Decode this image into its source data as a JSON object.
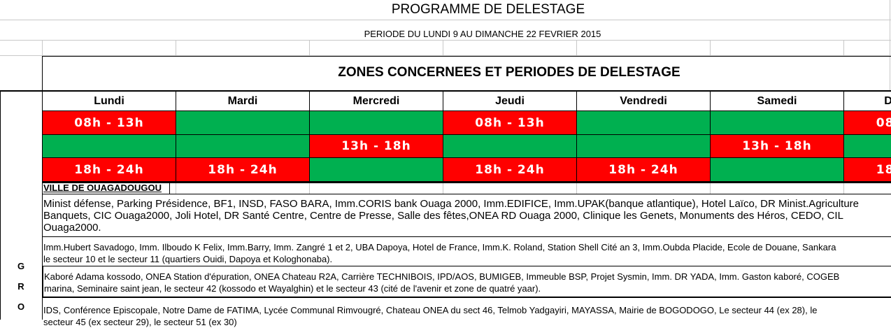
{
  "title": "PROGRAMME DE DELESTAGE",
  "period": "PERIODE DU LUNDI 9 AU DIMANCHE 22 FEVRIER 2015",
  "section_title": "ZONES CONCERNEES ET PERIODES DE DELESTAGE",
  "days": [
    "Lundi",
    "Mardi",
    "Mercredi",
    "Jeudi",
    "Vendredi",
    "Samedi",
    "Dimanche"
  ],
  "slots": [
    {
      "label": "08h - 13h",
      "active": [
        true,
        false,
        false,
        true,
        false,
        false,
        true
      ]
    },
    {
      "label": "13h - 18h",
      "active": [
        false,
        false,
        true,
        false,
        false,
        true,
        false
      ]
    },
    {
      "label": "18h - 24h",
      "active": [
        true,
        true,
        false,
        true,
        true,
        false,
        true
      ]
    }
  ],
  "city": "VILLE DE OUAGADOUGOU",
  "group_letters": [
    "G",
    "R",
    "O"
  ],
  "zones": [
    {
      "lines": [
        "Minist défense, Parking Présidence, BF1, INSD, FASO BARA,  Imm.CORIS bank Ouaga 2000, Imm.EDIFICE, Imm.UPAK(banque atlantique), Hotel Laïco, DR Minist.Agriculture",
        "Banquets, CIC Ouaga2000, Joli Hotel, DR Santé Centre, Centre de Presse, Salle des fêtes,ONEA RD Ouaga 2000, Clinique les Genets, Monuments des Héros, CEDO, CIL",
        "Ouaga2000."
      ]
    },
    {
      "lines": [
        "Imm.Hubert Savadogo, Imm. Ilboudo K Felix, Imm.Barry, Imm. Zangré 1 et 2, UBA Dapoya, Hotel de France, Imm.K. Roland, Station Shell Cité an 3, Imm.Oubda Placide, Ecole de Douane, Sankara",
        "le secteur 10 et le secteur 11 (quartiers Ouidi, Dapoya et Kologhonaba)."
      ]
    },
    {
      "lines": [
        "Kaboré Adama kossodo, ONEA Station d'épuration, ONEA Chateau R2A, Carrière TECHNIBOIS, IPD/AOS, BUMIGEB, Immeuble BSP, Projet Sysmin, Imm. DR YADA, Imm. Gaston kaboré, COGEB",
        "marina, Seminaire saint jean, le secteur 42 (kossodo et Wayalghin) et le secteur 43 (cité de l'avenir et zone de quatré yaar)."
      ]
    },
    {
      "lines": [
        " IDS, Conférence Episcopale,  Notre Dame de FATIMA, Lycée Communal Rimvougré, Chateau ONEA du sect 46, Telmob Yadgayiri, MAYASSA, Mairie de BOGODOGO, Le secteur  44 (ex 28), le",
        "secteur 45 (ex secteur 29), le secteur 51 (ex 30)"
      ]
    }
  ]
}
